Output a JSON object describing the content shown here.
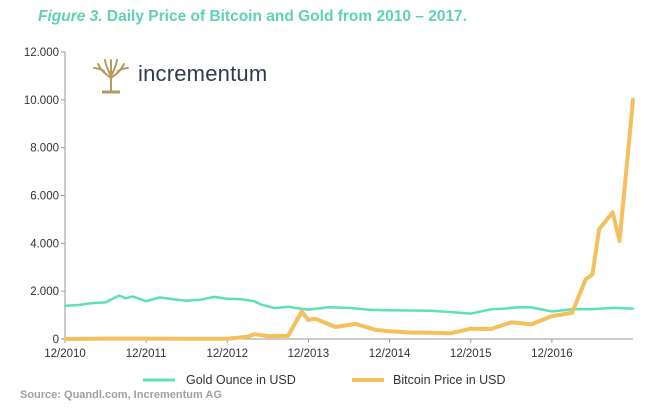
{
  "header": {
    "figure_label": "Figure 3.",
    "title_text": "Daily Price of Bitcoin and Gold from 2010 – 2017."
  },
  "logo": {
    "name": "incrementum",
    "icon": "tree-logo-icon",
    "color": "#b39a5f"
  },
  "source": "Source: Quandl.com, Incrementum AG",
  "colors": {
    "gold": "#5ce0b8",
    "bitcoin": "#f5bf5c",
    "axis": "#9a9a9a"
  },
  "chart_data": {
    "type": "line",
    "title": "Daily Price of Bitcoin and Gold from 2010 – 2017.",
    "xlabel": "",
    "ylabel": "",
    "x_ticks": [
      "12/2010",
      "12/2011",
      "12/2012",
      "12/2013",
      "12/2014",
      "12/2015",
      "12/2016"
    ],
    "y_ticks": [
      "0",
      "2.000",
      "4.000",
      "6.000",
      "8.000",
      "10.000",
      "12.000"
    ],
    "ylim": [
      0,
      12000
    ],
    "xlim": [
      "2010-12",
      "2017-12"
    ],
    "legend": {
      "placement": "bottom",
      "entries": [
        "Gold Ounce in USD",
        "Bitcoin Price in USD"
      ]
    },
    "grid": false,
    "series": [
      {
        "name": "Gold Ounce in USD",
        "x": [
          "2010-12",
          "2011-02",
          "2011-04",
          "2011-06",
          "2011-08",
          "2011-09",
          "2011-10",
          "2011-12",
          "2012-02",
          "2012-04",
          "2012-06",
          "2012-08",
          "2012-10",
          "2012-12",
          "2013-02",
          "2013-04",
          "2013-05",
          "2013-07",
          "2013-09",
          "2013-10",
          "2013-12",
          "2014-03",
          "2014-06",
          "2014-09",
          "2014-12",
          "2015-03",
          "2015-06",
          "2015-09",
          "2015-12",
          "2016-03",
          "2016-05",
          "2016-07",
          "2016-09",
          "2016-12",
          "2017-03",
          "2017-06",
          "2017-09",
          "2017-12"
        ],
        "values": [
          1390,
          1420,
          1500,
          1530,
          1820,
          1700,
          1780,
          1580,
          1740,
          1660,
          1600,
          1640,
          1760,
          1680,
          1670,
          1580,
          1440,
          1290,
          1350,
          1300,
          1230,
          1330,
          1300,
          1220,
          1200,
          1190,
          1180,
          1130,
          1060,
          1240,
          1270,
          1330,
          1320,
          1150,
          1240,
          1250,
          1300,
          1270
        ]
      },
      {
        "name": "Bitcoin Price in USD",
        "x": [
          "2010-12",
          "2011-06",
          "2012-06",
          "2012-12",
          "2013-03",
          "2013-04",
          "2013-06",
          "2013-09",
          "2013-11",
          "2013-12",
          "2014-01",
          "2014-04",
          "2014-07",
          "2014-10",
          "2014-12",
          "2015-03",
          "2015-06",
          "2015-09",
          "2015-12",
          "2016-03",
          "2016-06",
          "2016-09",
          "2016-12",
          "2017-01",
          "2017-03",
          "2017-05",
          "2017-06",
          "2017-07",
          "2017-09",
          "2017-10",
          "2017-11",
          "2017-12"
        ],
        "values": [
          0,
          15,
          10,
          13,
          90,
          200,
          120,
          130,
          1150,
          800,
          850,
          500,
          630,
          380,
          320,
          270,
          260,
          240,
          430,
          420,
          700,
          610,
          960,
          1000,
          1100,
          2500,
          2700,
          4600,
          5300,
          4100,
          7000,
          10000
        ]
      }
    ]
  }
}
